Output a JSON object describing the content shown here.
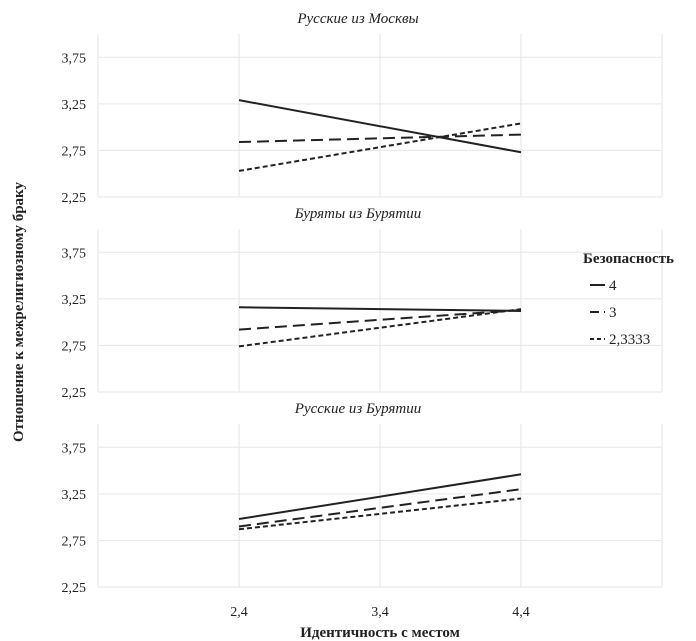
{
  "chart_data": {
    "type": "line",
    "xlabel": "Идентичность с местом",
    "ylabel": "Отношение к межрелигиозному браку",
    "x": [
      2.4,
      3.4,
      4.4
    ],
    "x_tick_labels": [
      "2,4",
      "3,4",
      "4,4"
    ],
    "xlim": [
      1.4,
      5.4
    ],
    "ylim": [
      2.25,
      4.0
    ],
    "y_ticks": [
      2.25,
      2.75,
      3.25,
      3.75
    ],
    "y_tick_labels": [
      "2,25",
      "2,75",
      "3,25",
      "3,75"
    ],
    "grid": true,
    "legend": {
      "title": "Безопасность",
      "placement": "right",
      "entries": [
        {
          "label": "4",
          "dash": "solid"
        },
        {
          "label": "3",
          "dash": "dashed"
        },
        {
          "label": "2,3333",
          "dash": "dotted"
        }
      ]
    },
    "panels": [
      {
        "title": "Русские из Москвы",
        "series": [
          {
            "name": "4",
            "x": [
              2.4,
              4.4
            ],
            "values": [
              3.29,
              2.73
            ]
          },
          {
            "name": "3",
            "x": [
              2.4,
              4.4
            ],
            "values": [
              2.84,
              2.92
            ]
          },
          {
            "name": "2,3333",
            "x": [
              2.4,
              4.4
            ],
            "values": [
              2.53,
              3.04
            ]
          }
        ]
      },
      {
        "title": "Буряты из Бурятии",
        "series": [
          {
            "name": "4",
            "x": [
              2.4,
              4.4
            ],
            "values": [
              3.16,
              3.12
            ]
          },
          {
            "name": "3",
            "x": [
              2.4,
              4.4
            ],
            "values": [
              2.92,
              3.13
            ]
          },
          {
            "name": "2,3333",
            "x": [
              2.4,
              4.4
            ],
            "values": [
              2.74,
              3.14
            ]
          }
        ]
      },
      {
        "title": "Русские из Бурятии",
        "series": [
          {
            "name": "4",
            "x": [
              2.4,
              4.4
            ],
            "values": [
              2.98,
              3.46
            ]
          },
          {
            "name": "3",
            "x": [
              2.4,
              4.4
            ],
            "values": [
              2.9,
              3.3
            ]
          },
          {
            "name": "2,3333",
            "x": [
              2.4,
              4.4
            ],
            "values": [
              2.87,
              3.2
            ]
          }
        ]
      }
    ]
  }
}
